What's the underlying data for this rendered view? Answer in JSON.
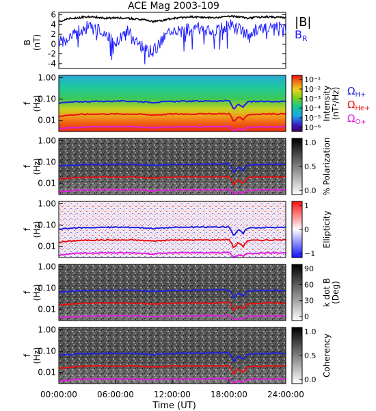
{
  "title": "ACE Mag 2003-109",
  "xaxis": {
    "label": "Time (UT)",
    "ticks": [
      "00:00:00",
      "06:00:00",
      "12:00:00",
      "18:00:00",
      "24:00:00"
    ]
  },
  "legend_top": {
    "b_total": "|B|",
    "b_r": "B",
    "b_r_sub": "R"
  },
  "freq_legend": [
    {
      "sym": "Ω",
      "sub": "H+",
      "color": "#2020e0"
    },
    {
      "sym": "Ω",
      "sub": "He+",
      "color": "#e81010"
    },
    {
      "sym": "Ω",
      "sub": "O+",
      "color": "#e020e0"
    }
  ],
  "colors": {
    "total": "#000000",
    "radial": "#1a1aff",
    "proton_line": "#2020e0",
    "helium_line": "#e81010",
    "oxygen_line": "#e020e0"
  },
  "freq_ticks": [
    "1.00",
    "0.10",
    "0.01"
  ],
  "freq_ylabel": [
    "f",
    "(Hz)"
  ],
  "panels": [
    {
      "id": "intensity",
      "cbar_type": "spectrum",
      "cbar_labels": [
        "10⁻¹",
        "10⁻²",
        "10⁻³",
        "10⁻⁴",
        "10⁻⁵",
        "10⁻⁶"
      ],
      "cbar_title": [
        "Intensity",
        "(nT²/Hz)"
      ]
    },
    {
      "id": "polarization",
      "cbar_type": "gray",
      "cbar_labels": [
        "1.0",
        "0.5",
        "0.0"
      ],
      "cbar_title": [
        "% Polarization"
      ]
    },
    {
      "id": "ellipticity",
      "cbar_type": "bwr",
      "cbar_labels": [
        "1",
        "0",
        "−1"
      ],
      "cbar_title": [
        "Ellipticity"
      ]
    },
    {
      "id": "kdotb",
      "cbar_type": "gray",
      "cbar_labels": [
        "90",
        "60",
        "30",
        "0"
      ],
      "cbar_title": [
        "k dot B",
        "(Deg)"
      ]
    },
    {
      "id": "coherency",
      "cbar_type": "gray",
      "cbar_labels": [
        "1.0",
        "0.5",
        "0.0"
      ],
      "cbar_title": [
        "Coherency"
      ]
    }
  ],
  "chart_data": {
    "type": "line",
    "title": "ACE Mag 2003-109",
    "xlabel": "Time (UT)",
    "xlim_hours": [
      0,
      24
    ],
    "top_panel": {
      "ylabel": "B (nT)",
      "yticks": [
        6,
        4,
        2,
        0,
        -2,
        -4
      ],
      "ylim": [
        -5,
        6.5
      ],
      "series": [
        {
          "name": "|B|",
          "x_hours": [
            0,
            1,
            2,
            3,
            4,
            5,
            6,
            7,
            8,
            9,
            10,
            11,
            12,
            13,
            14,
            15,
            16,
            17,
            18,
            19,
            20,
            21,
            22,
            23,
            24
          ],
          "values": [
            4.6,
            5.2,
            5.4,
            5.6,
            5.5,
            5.3,
            5.4,
            5.3,
            5.2,
            5.0,
            4.6,
            4.8,
            5.3,
            5.4,
            5.6,
            5.5,
            5.4,
            5.5,
            5.7,
            5.6,
            5.3,
            5.5,
            5.6,
            5.5,
            5.4
          ]
        },
        {
          "name": "B_R",
          "x_hours": [
            0,
            1,
            2,
            3,
            4,
            5,
            6,
            7,
            8,
            9,
            10,
            11,
            12,
            13,
            14,
            15,
            16,
            17,
            18,
            19,
            20,
            21,
            22,
            23,
            24
          ],
          "values": [
            0.5,
            1.0,
            2.5,
            3.5,
            3.0,
            2.0,
            0.0,
            3.0,
            1.5,
            -1.0,
            -1.5,
            1.0,
            3.5,
            2.5,
            3.5,
            3.0,
            2.5,
            3.0,
            4.0,
            3.0,
            2.0,
            3.0,
            3.5,
            3.5,
            3.5
          ]
        }
      ]
    },
    "gyrofrequency_lines_hz": {
      "x_hours": [
        0,
        2,
        4,
        6,
        8,
        10,
        12,
        14,
        16,
        18,
        18.5,
        19,
        19.5,
        20,
        22,
        24
      ],
      "H+": [
        0.065,
        0.075,
        0.078,
        0.08,
        0.079,
        0.07,
        0.078,
        0.08,
        0.081,
        0.083,
        0.03,
        0.06,
        0.04,
        0.075,
        0.078,
        0.078
      ],
      "He+": [
        0.016,
        0.019,
        0.02,
        0.02,
        0.02,
        0.018,
        0.02,
        0.02,
        0.02,
        0.021,
        0.008,
        0.015,
        0.01,
        0.019,
        0.02,
        0.02
      ],
      "O+": [
        0.0041,
        0.0047,
        0.005,
        0.005,
        0.005,
        0.0045,
        0.005,
        0.005,
        0.005,
        0.0052,
        0.003,
        0.004,
        0.0035,
        0.0048,
        0.005,
        0.005
      ]
    },
    "freq_ylim_hz": [
      0.003,
      1.3
    ],
    "freq_scale": "log"
  }
}
